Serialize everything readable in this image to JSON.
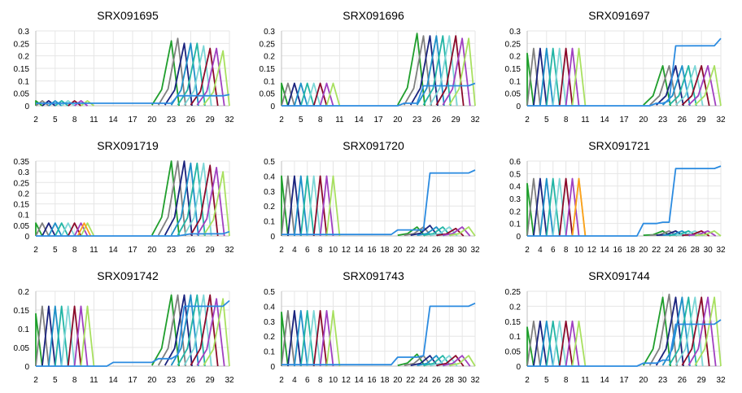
{
  "chart_data": [
    {
      "type": "line",
      "title": "SRX091695",
      "x_min": 2,
      "x_max": 32,
      "x_ticks": [
        2,
        5,
        8,
        11,
        14,
        17,
        20,
        23,
        26,
        29,
        32
      ],
      "ylim": [
        0,
        0.3
      ],
      "y_ticks": [
        0,
        0.05,
        0.1,
        0.15,
        0.2,
        0.25,
        0.3
      ],
      "y_tick_labels": [
        "0",
        "0.05",
        "0.1",
        "0.15",
        "0.2",
        "0.25",
        "0.3"
      ],
      "early_peaks": [
        0.02,
        0.02,
        0.02,
        0.02,
        0.02,
        0.02,
        0.02,
        0.02,
        0.02
      ],
      "late_peaks": [
        0.26,
        0.27,
        0.25,
        0.25,
        0.25,
        0.24,
        0.23,
        0.23,
        0.22
      ],
      "flat_series": {
        "start": [
          0.01,
          0.01,
          0.01,
          0.01,
          0.01,
          0.01,
          0.01,
          0.01,
          0.01,
          0.01,
          0.01,
          0.01,
          0.01,
          0.01,
          0.01,
          0.01,
          0.01,
          0.01,
          0.01,
          0.01,
          0.01,
          0.01,
          0.01
        ],
        "jump_x": 24,
        "level": 0.04,
        "end": 0.045
      }
    },
    {
      "type": "line",
      "title": "SRX091696",
      "x_min": 2,
      "x_max": 32,
      "x_ticks": [
        2,
        5,
        8,
        11,
        14,
        17,
        20,
        23,
        26,
        29,
        32
      ],
      "ylim": [
        0,
        0.3
      ],
      "y_ticks": [
        0,
        0.05,
        0.1,
        0.15,
        0.2,
        0.25,
        0.3
      ],
      "y_tick_labels": [
        "0",
        "0.05",
        "0.1",
        "0.15",
        "0.2",
        "0.25",
        "0.3"
      ],
      "early_peaks": [
        0.09,
        0.09,
        0.09,
        0.09,
        0.09,
        0.09,
        0.09,
        0.09,
        0.09
      ],
      "late_peaks": [
        0.29,
        0.28,
        0.28,
        0.28,
        0.28,
        0.28,
        0.28,
        0.27,
        0.27
      ],
      "flat_series": {
        "start": [
          0,
          0,
          0,
          0,
          0,
          0,
          0,
          0,
          0,
          0,
          0,
          0,
          0,
          0,
          0,
          0,
          0,
          0,
          0,
          0.01,
          0.01,
          0.01,
          0.02
        ],
        "jump_x": 24,
        "level": 0.08,
        "end": 0.09
      }
    },
    {
      "type": "line",
      "title": "SRX091697",
      "x_min": 2,
      "x_max": 32,
      "x_ticks": [
        2,
        5,
        8,
        11,
        14,
        17,
        20,
        23,
        26,
        29,
        32
      ],
      "ylim": [
        0,
        0.3
      ],
      "y_ticks": [
        0,
        0.05,
        0.1,
        0.15,
        0.2,
        0.25,
        0.3
      ],
      "y_tick_labels": [
        "0",
        "0.05",
        "0.1",
        "0.15",
        "0.2",
        "0.25",
        "0.3"
      ],
      "early_peaks": [
        0.21,
        0.23,
        0.23,
        0.23,
        0.23,
        0.23,
        0.23,
        0.23,
        0.23
      ],
      "late_peaks": [
        0.16,
        0.16,
        0.16,
        0.16,
        0.16,
        0.16,
        0.16,
        0.16,
        0.16
      ],
      "flat_series": {
        "start": [
          0,
          0,
          0,
          0,
          0,
          0,
          0,
          0,
          0,
          0,
          0,
          0,
          0,
          0,
          0,
          0,
          0,
          0,
          0,
          0,
          0.01,
          0.01,
          0.02
        ],
        "jump_x": 25,
        "level": 0.24,
        "end": 0.27
      }
    },
    {
      "type": "line",
      "title": "SRX091719",
      "x_min": 2,
      "x_max": 32,
      "x_ticks": [
        2,
        5,
        8,
        11,
        14,
        17,
        20,
        23,
        26,
        29,
        32
      ],
      "ylim": [
        0,
        0.35
      ],
      "y_ticks": [
        0,
        0.05,
        0.1,
        0.15,
        0.2,
        0.25,
        0.3,
        0.35
      ],
      "y_tick_labels": [
        "0",
        "0.05",
        "0.1",
        "0.15",
        "0.2",
        "0.25",
        "0.3",
        "0.35"
      ],
      "early_peaks": [
        0.06,
        0.06,
        0.06,
        0.06,
        0.06,
        0.06,
        0.06,
        0.06,
        0.06
      ],
      "late_peaks": [
        0.35,
        0.35,
        0.35,
        0.34,
        0.34,
        0.34,
        0.33,
        0.32,
        0.3
      ],
      "flat_series": {
        "start": [
          0,
          0,
          0,
          0,
          0,
          0,
          0,
          0,
          0,
          0,
          0,
          0,
          0,
          0,
          0,
          0,
          0,
          0,
          0,
          0,
          0,
          0,
          0
        ],
        "jump_x": 26,
        "level": 0.01,
        "end": 0.02
      }
    },
    {
      "type": "line",
      "title": "SRX091720",
      "x_min": 2,
      "x_max": 32,
      "x_ticks": [
        2,
        4,
        6,
        8,
        10,
        12,
        14,
        16,
        18,
        20,
        22,
        24,
        26,
        28,
        30,
        32
      ],
      "ylim": [
        0,
        0.5
      ],
      "y_ticks": [
        0,
        0.1,
        0.2,
        0.3,
        0.4,
        0.5
      ],
      "y_tick_labels": [
        "0",
        "0.1",
        "0.2",
        "0.3",
        "0.4",
        "0.5"
      ],
      "early_peaks": [
        0.4,
        0.4,
        0.4,
        0.4,
        0.4,
        0.4,
        0.4,
        0.4,
        0.4
      ],
      "late_peaks": [
        0.06,
        0.06,
        0.07,
        0.06,
        0.06,
        0.06,
        0.05,
        0.06,
        0.06
      ],
      "flat_series": {
        "start": [
          0.01,
          0.01,
          0.01,
          0.01,
          0.01,
          0.01,
          0.01,
          0.01,
          0.01,
          0.01,
          0.01,
          0.01,
          0.01,
          0.01,
          0.01,
          0.01,
          0.01,
          0.01,
          0.04,
          0.04,
          0.04,
          0.04,
          0.04
        ],
        "jump_x": 25,
        "level": 0.42,
        "end": 0.44
      }
    },
    {
      "type": "line",
      "title": "SRX091721",
      "x_min": 2,
      "x_max": 32,
      "x_ticks": [
        2,
        4,
        6,
        8,
        10,
        12,
        14,
        16,
        18,
        20,
        22,
        24,
        26,
        28,
        30,
        32
      ],
      "ylim": [
        0,
        0.6
      ],
      "y_ticks": [
        0,
        0.1,
        0.2,
        0.3,
        0.4,
        0.5,
        0.6
      ],
      "y_tick_labels": [
        "0",
        "0.1",
        "0.2",
        "0.3",
        "0.4",
        "0.5",
        "0.6"
      ],
      "early_peaks": [
        0.42,
        0.46,
        0.46,
        0.46,
        0.46,
        0.46,
        0.46,
        0.46,
        0.46
      ],
      "late_peaks": [
        0.04,
        0.04,
        0.04,
        0.04,
        0.04,
        0.04,
        0.04,
        0.04,
        0.04
      ],
      "flat_series": {
        "start": [
          0,
          0,
          0,
          0,
          0,
          0,
          0,
          0,
          0,
          0,
          0,
          0,
          0,
          0,
          0,
          0,
          0,
          0,
          0.1,
          0.1,
          0.1,
          0.11,
          0.11
        ],
        "jump_x": 25,
        "level": 0.54,
        "end": 0.56
      }
    },
    {
      "type": "line",
      "title": "SRX091742",
      "x_min": 2,
      "x_max": 32,
      "x_ticks": [
        2,
        5,
        8,
        11,
        14,
        17,
        20,
        23,
        26,
        29,
        32
      ],
      "ylim": [
        0,
        0.2
      ],
      "y_ticks": [
        0,
        0.05,
        0.1,
        0.15,
        0.2
      ],
      "y_tick_labels": [
        "0",
        "0.05",
        "0.1",
        "0.15",
        "0.2"
      ],
      "early_peaks": [
        0.14,
        0.16,
        0.16,
        0.16,
        0.16,
        0.16,
        0.16,
        0.16,
        0.16
      ],
      "late_peaks": [
        0.19,
        0.19,
        0.19,
        0.19,
        0.19,
        0.19,
        0.19,
        0.18,
        0.18
      ],
      "flat_series": {
        "start": [
          0,
          0,
          0,
          0,
          0,
          0,
          0,
          0,
          0,
          0,
          0,
          0,
          0.01,
          0.01,
          0.01,
          0.01,
          0.01,
          0.01,
          0.01,
          0.02,
          0.02,
          0.02,
          0.03
        ],
        "jump_x": 25,
        "level": 0.16,
        "end": 0.175
      }
    },
    {
      "type": "line",
      "title": "SRX091743",
      "x_min": 2,
      "x_max": 32,
      "x_ticks": [
        2,
        4,
        6,
        8,
        10,
        12,
        14,
        16,
        18,
        20,
        22,
        24,
        26,
        28,
        30,
        32
      ],
      "ylim": [
        0,
        0.5
      ],
      "y_ticks": [
        0,
        0.1,
        0.2,
        0.3,
        0.4,
        0.5
      ],
      "y_tick_labels": [
        "0",
        "0.1",
        "0.2",
        "0.3",
        "0.4",
        "0.5"
      ],
      "early_peaks": [
        0.36,
        0.37,
        0.37,
        0.37,
        0.37,
        0.37,
        0.37,
        0.37,
        0.37
      ],
      "late_peaks": [
        0.08,
        0.07,
        0.07,
        0.07,
        0.07,
        0.07,
        0.07,
        0.07,
        0.07
      ],
      "flat_series": {
        "start": [
          0.01,
          0.01,
          0.01,
          0.01,
          0.01,
          0.01,
          0.01,
          0.01,
          0.01,
          0.01,
          0.01,
          0.01,
          0.01,
          0.01,
          0.01,
          0.01,
          0.01,
          0.01,
          0.06,
          0.06,
          0.06,
          0.06,
          0.07
        ],
        "jump_x": 25,
        "level": 0.4,
        "end": 0.42
      }
    },
    {
      "type": "line",
      "title": "SRX091744",
      "x_min": 2,
      "x_max": 32,
      "x_ticks": [
        2,
        5,
        8,
        11,
        14,
        17,
        20,
        23,
        26,
        29,
        32
      ],
      "ylim": [
        0,
        0.25
      ],
      "y_ticks": [
        0,
        0.05,
        0.1,
        0.15,
        0.2,
        0.25
      ],
      "y_tick_labels": [
        "0",
        "0.05",
        "0.1",
        "0.15",
        "0.2",
        "0.25"
      ],
      "early_peaks": [
        0.13,
        0.15,
        0.15,
        0.15,
        0.15,
        0.15,
        0.15,
        0.15,
        0.15
      ],
      "late_peaks": [
        0.23,
        0.24,
        0.23,
        0.23,
        0.23,
        0.23,
        0.23,
        0.23,
        0.23
      ],
      "flat_series": {
        "start": [
          0,
          0,
          0,
          0,
          0,
          0,
          0,
          0,
          0,
          0,
          0,
          0,
          0,
          0,
          0,
          0,
          0,
          0,
          0.01,
          0.01,
          0.01,
          0.02,
          0.02
        ],
        "jump_x": 25,
        "level": 0.14,
        "end": 0.155
      }
    }
  ],
  "series_colors": [
    "#1f9e2c",
    "#808080",
    "#1a237e",
    "#1e90c8",
    "#22b5a5",
    "#7cd6d6",
    "#8b0a2a",
    "#a040c0",
    "#a8e060"
  ],
  "extra_colors": {
    "orange": "#ff9f1c",
    "flat": "#2b8be0"
  }
}
